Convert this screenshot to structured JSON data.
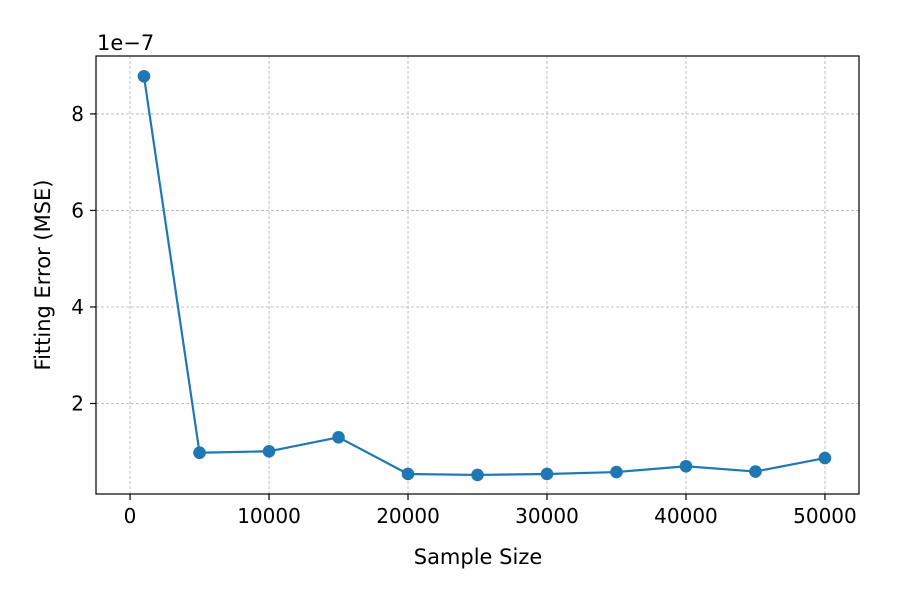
{
  "chart_data": {
    "type": "line",
    "title": "",
    "xlabel": "Sample Size",
    "ylabel": "Fitting Error (MSE)",
    "y_offset_label": "1e−7",
    "xlim": [
      -2450,
      52450
    ],
    "ylim": [
      1.25e-08,
      9.2e-07
    ],
    "x_ticks": [
      0,
      10000,
      20000,
      30000,
      40000,
      50000
    ],
    "x_tick_labels": [
      "0",
      "10000",
      "20000",
      "30000",
      "40000",
      "50000"
    ],
    "y_ticks": [
      2e-07,
      4e-07,
      6e-07,
      8e-07
    ],
    "y_tick_labels": [
      "2",
      "4",
      "6",
      "8"
    ],
    "grid": true,
    "series": [
      {
        "color": "#1f77b4",
        "marker": "circle",
        "x": [
          1000,
          5000,
          10000,
          15000,
          20000,
          25000,
          30000,
          35000,
          40000,
          45000,
          50000
        ],
        "y": [
          8.78e-07,
          9.8e-08,
          1.01e-07,
          1.3e-07,
          5.4e-08,
          5.2e-08,
          5.4e-08,
          5.8e-08,
          7e-08,
          5.9e-08,
          8.7e-08
        ]
      }
    ]
  }
}
